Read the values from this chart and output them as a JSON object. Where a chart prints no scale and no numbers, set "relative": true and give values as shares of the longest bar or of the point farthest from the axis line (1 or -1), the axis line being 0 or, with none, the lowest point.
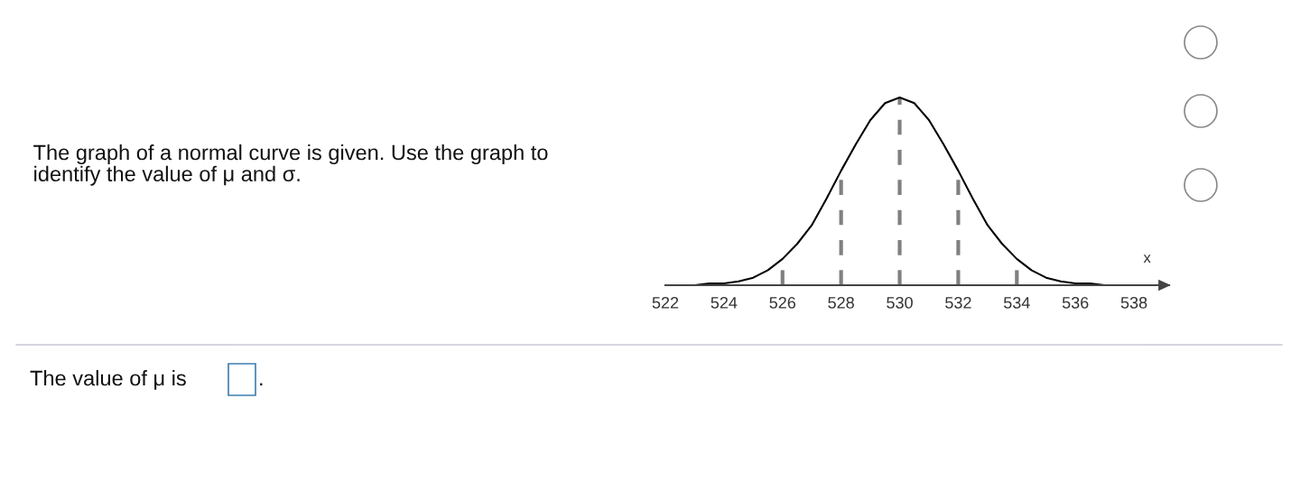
{
  "chart_data": {
    "type": "line",
    "relative": true,
    "xlabel": "x",
    "x": [
      522,
      522.5,
      523,
      523.5,
      524,
      524.5,
      525,
      525.5,
      526,
      526.5,
      527,
      527.5,
      528,
      528.5,
      529,
      529.5,
      530,
      530.5,
      531,
      531.5,
      532,
      532.5,
      533,
      533.5,
      534,
      534.5,
      535,
      535.5,
      536,
      536.5,
      537
    ],
    "series": [
      {
        "color": "#000000",
        "values": [
          0,
          0,
          0,
          0.01,
          0.01,
          0.02,
          0.04,
          0.08,
          0.14,
          0.22,
          0.32,
          0.46,
          0.61,
          0.75,
          0.88,
          0.97,
          1,
          0.97,
          0.88,
          0.75,
          0.61,
          0.46,
          0.32,
          0.22,
          0.14,
          0.08,
          0.04,
          0.02,
          0.01,
          0.01,
          0
        ]
      }
    ],
    "xlim": [
      522,
      539.2
    ],
    "xticks": [
      522,
      524,
      526,
      528,
      530,
      532,
      534,
      536,
      538
    ],
    "ref_lines": [
      {
        "axis": "x",
        "value": 526,
        "color": "#808080",
        "line_style": "dashed"
      },
      {
        "axis": "x",
        "value": 528,
        "color": "#808080",
        "line_style": "dashed"
      },
      {
        "axis": "x",
        "value": 530,
        "color": "#808080",
        "line_style": "dashed"
      },
      {
        "axis": "x",
        "value": 532,
        "color": "#808080",
        "line_style": "dashed"
      },
      {
        "axis": "x",
        "value": 534,
        "color": "#808080",
        "line_style": "dashed"
      }
    ],
    "grid": false,
    "legend": false,
    "marker": "none",
    "line_style": "solid",
    "annotations": [
      "The graph of a normal curve is given. Use the graph to identify the value of μ and σ.",
      "The value of μ is",
      "."
    ]
  }
}
